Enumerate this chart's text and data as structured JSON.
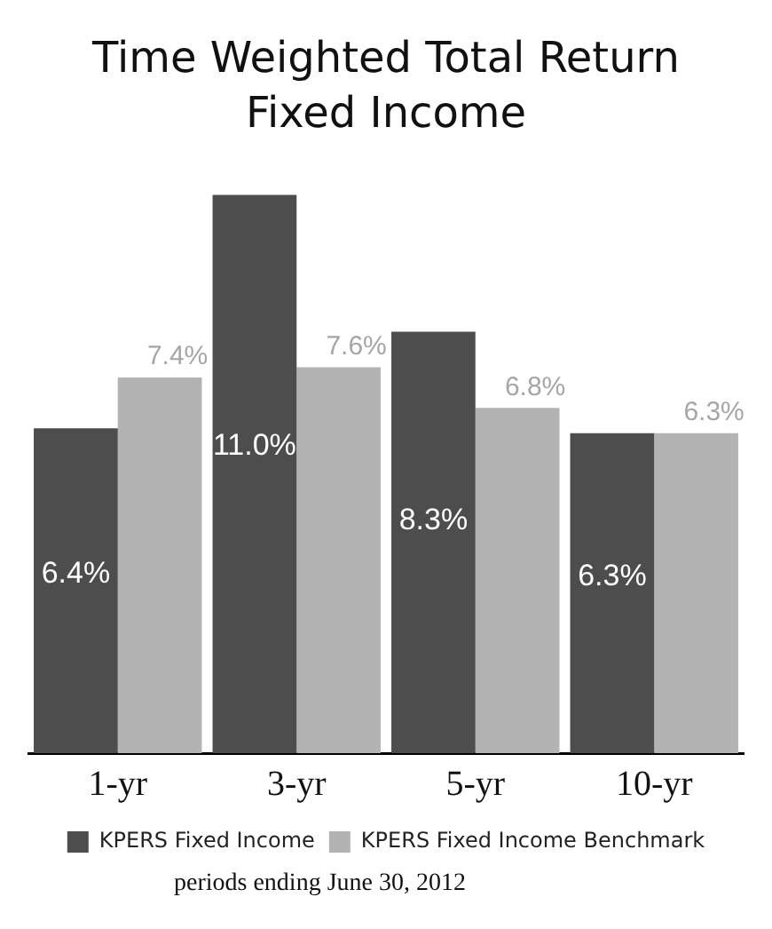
{
  "chart_data": {
    "type": "bar",
    "title": "Time Weighted Total Return",
    "subtitle": "Fixed Income",
    "categories": [
      "1-yr",
      "3-yr",
      "5-yr",
      "10-yr"
    ],
    "series": [
      {
        "name": "KPERS Fixed Income",
        "color": "#4d4d4d",
        "values": [
          6.4,
          11.0,
          8.3,
          6.3
        ],
        "value_labels": [
          "6.4%",
          "11.0%",
          "8.3%",
          "6.3%"
        ]
      },
      {
        "name": "KPERS Fixed Income Benchmark",
        "color": "#b3b3b3",
        "values": [
          7.4,
          7.6,
          6.8,
          6.3
        ],
        "value_labels": [
          "7.4%",
          "7.6%",
          "6.8%",
          "6.3%"
        ]
      }
    ],
    "legend": "bottom",
    "grid": false,
    "annotations": [
      "periods ending June 30, 2012"
    ]
  }
}
